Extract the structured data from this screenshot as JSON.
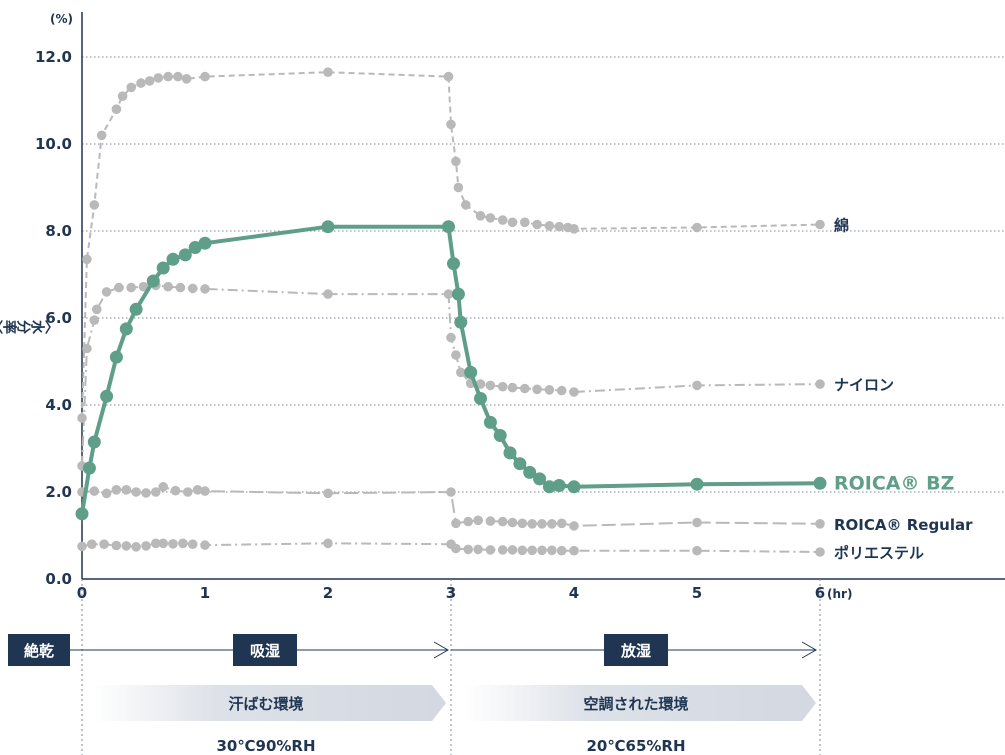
{
  "chart_data": {
    "type": "line",
    "title": "",
    "y_unit": "(%)",
    "x_unit": "(hr)",
    "ylabel": "〈水分率〉",
    "ylim": [
      0,
      12.6
    ],
    "xlim": [
      0,
      6
    ],
    "yticks": [
      "0.0",
      "2.0",
      "4.0",
      "6.0",
      "8.0",
      "10.0",
      "12.0"
    ],
    "xticks": [
      "0",
      "1",
      "2",
      "3",
      "4",
      "5",
      "6"
    ],
    "grid": true,
    "series": [
      {
        "name": "綿",
        "style": "dashed",
        "color": "#b9b9b9",
        "points": [
          [
            0,
            3.7
          ],
          [
            0.04,
            7.35
          ],
          [
            0.1,
            8.6
          ],
          [
            0.16,
            10.2
          ],
          [
            0.28,
            10.8
          ],
          [
            0.33,
            11.1
          ],
          [
            0.4,
            11.3
          ],
          [
            0.48,
            11.4
          ],
          [
            0.55,
            11.45
          ],
          [
            0.62,
            11.52
          ],
          [
            0.7,
            11.55
          ],
          [
            0.78,
            11.55
          ],
          [
            0.85,
            11.5
          ],
          [
            1.0,
            11.55
          ],
          [
            2.0,
            11.65
          ],
          [
            2.98,
            11.55
          ],
          [
            3.0,
            10.45
          ],
          [
            3.04,
            9.6
          ],
          [
            3.06,
            9.0
          ],
          [
            3.12,
            8.6
          ],
          [
            3.24,
            8.35
          ],
          [
            3.32,
            8.3
          ],
          [
            3.42,
            8.25
          ],
          [
            3.5,
            8.2
          ],
          [
            3.6,
            8.2
          ],
          [
            3.7,
            8.15
          ],
          [
            3.8,
            8.12
          ],
          [
            3.88,
            8.1
          ],
          [
            3.95,
            8.08
          ],
          [
            4.0,
            8.05
          ],
          [
            5.0,
            8.08
          ],
          [
            6.0,
            8.15
          ]
        ]
      },
      {
        "name": "ナイロン",
        "style": "dashdot",
        "color": "#b9b9b9",
        "points": [
          [
            0,
            2.6
          ],
          [
            0.04,
            5.3
          ],
          [
            0.1,
            5.95
          ],
          [
            0.12,
            6.2
          ],
          [
            0.2,
            6.6
          ],
          [
            0.3,
            6.7
          ],
          [
            0.4,
            6.7
          ],
          [
            0.5,
            6.72
          ],
          [
            0.6,
            6.75
          ],
          [
            0.7,
            6.72
          ],
          [
            0.8,
            6.7
          ],
          [
            0.9,
            6.68
          ],
          [
            1.0,
            6.67
          ],
          [
            2.0,
            6.55
          ],
          [
            2.98,
            6.55
          ],
          [
            3.0,
            5.55
          ],
          [
            3.04,
            5.15
          ],
          [
            3.08,
            4.75
          ],
          [
            3.16,
            4.5
          ],
          [
            3.24,
            4.48
          ],
          [
            3.32,
            4.45
          ],
          [
            3.42,
            4.42
          ],
          [
            3.5,
            4.4
          ],
          [
            3.6,
            4.38
          ],
          [
            3.7,
            4.36
          ],
          [
            3.8,
            4.35
          ],
          [
            3.9,
            4.33
          ],
          [
            4.0,
            4.3
          ],
          [
            5.0,
            4.45
          ],
          [
            6.0,
            4.48
          ]
        ]
      },
      {
        "name": "ROICA® BZ",
        "style": "solid",
        "color": "#5f9e88",
        "points": [
          [
            0,
            1.5
          ],
          [
            0.06,
            2.55
          ],
          [
            0.1,
            3.15
          ],
          [
            0.2,
            4.2
          ],
          [
            0.28,
            5.1
          ],
          [
            0.36,
            5.75
          ],
          [
            0.44,
            6.2
          ],
          [
            0.58,
            6.85
          ],
          [
            0.66,
            7.15
          ],
          [
            0.74,
            7.35
          ],
          [
            0.84,
            7.45
          ],
          [
            0.92,
            7.62
          ],
          [
            1.0,
            7.72
          ],
          [
            2.0,
            8.1
          ],
          [
            2.98,
            8.1
          ],
          [
            3.02,
            7.25
          ],
          [
            3.06,
            6.55
          ],
          [
            3.08,
            5.9
          ],
          [
            3.16,
            4.75
          ],
          [
            3.24,
            4.15
          ],
          [
            3.32,
            3.6
          ],
          [
            3.4,
            3.3
          ],
          [
            3.48,
            2.9
          ],
          [
            3.56,
            2.65
          ],
          [
            3.64,
            2.45
          ],
          [
            3.72,
            2.3
          ],
          [
            3.8,
            2.12
          ],
          [
            3.88,
            2.15
          ],
          [
            4.0,
            2.12
          ],
          [
            5.0,
            2.18
          ],
          [
            6.0,
            2.2
          ]
        ]
      },
      {
        "name": "ROICA® Regular",
        "style": "longdash",
        "color": "#b9b9b9",
        "points": [
          [
            0,
            2.0
          ],
          [
            0.1,
            2.02
          ],
          [
            0.2,
            1.97
          ],
          [
            0.28,
            2.05
          ],
          [
            0.36,
            2.05
          ],
          [
            0.44,
            2.0
          ],
          [
            0.52,
            1.98
          ],
          [
            0.6,
            2.0
          ],
          [
            0.66,
            2.12
          ],
          [
            0.76,
            2.03
          ],
          [
            0.86,
            2.0
          ],
          [
            0.94,
            2.05
          ],
          [
            1.0,
            2.02
          ],
          [
            2.0,
            1.97
          ],
          [
            3.0,
            2.0
          ],
          [
            3.04,
            1.28
          ],
          [
            3.14,
            1.32
          ],
          [
            3.22,
            1.35
          ],
          [
            3.32,
            1.33
          ],
          [
            3.42,
            1.32
          ],
          [
            3.5,
            1.3
          ],
          [
            3.58,
            1.28
          ],
          [
            3.66,
            1.27
          ],
          [
            3.74,
            1.27
          ],
          [
            3.82,
            1.27
          ],
          [
            3.9,
            1.28
          ],
          [
            4.0,
            1.22
          ],
          [
            5.0,
            1.3
          ],
          [
            6.0,
            1.27
          ]
        ]
      },
      {
        "name": "ポリエステル",
        "style": "dashdot",
        "color": "#b9b9b9",
        "points": [
          [
            0,
            0.75
          ],
          [
            0.08,
            0.8
          ],
          [
            0.18,
            0.8
          ],
          [
            0.28,
            0.77
          ],
          [
            0.36,
            0.76
          ],
          [
            0.44,
            0.74
          ],
          [
            0.52,
            0.76
          ],
          [
            0.6,
            0.82
          ],
          [
            0.66,
            0.82
          ],
          [
            0.74,
            0.81
          ],
          [
            0.82,
            0.82
          ],
          [
            0.9,
            0.8
          ],
          [
            1.0,
            0.78
          ],
          [
            2.0,
            0.82
          ],
          [
            3.0,
            0.8
          ],
          [
            3.04,
            0.7
          ],
          [
            3.14,
            0.68
          ],
          [
            3.22,
            0.68
          ],
          [
            3.32,
            0.67
          ],
          [
            3.42,
            0.67
          ],
          [
            3.5,
            0.67
          ],
          [
            3.58,
            0.66
          ],
          [
            3.66,
            0.66
          ],
          [
            3.74,
            0.66
          ],
          [
            3.82,
            0.66
          ],
          [
            3.9,
            0.65
          ],
          [
            4.0,
            0.65
          ],
          [
            5.0,
            0.65
          ],
          [
            6.0,
            0.62
          ]
        ]
      }
    ]
  },
  "phase_labels": {
    "dry": "絶乾",
    "absorb": "吸湿",
    "release": "放湿",
    "env_sweat": "汗ばむ環境",
    "env_ac": "空調された環境",
    "cond_1": "30℃90%RH",
    "cond_2": "20℃65%RH"
  },
  "colors": {
    "navy": "#1f3552",
    "grid": "#7d8899",
    "gray_series": "#b9b9b9",
    "accent_green": "#5f9e88",
    "arrow_band": "#dde1e8"
  }
}
